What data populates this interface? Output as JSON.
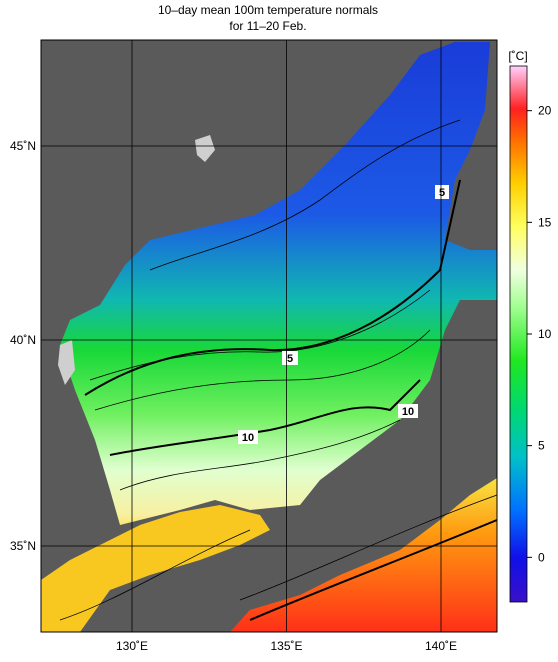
{
  "title": [
    "10–day mean 100m temperature normals",
    "for 11–20 Feb."
  ],
  "map": {
    "lat_ticks": [
      {
        "value": 45,
        "label": "45˚N"
      },
      {
        "value": 40,
        "label": "40˚N"
      },
      {
        "value": 35,
        "label": "35˚N"
      }
    ],
    "lon_ticks": [
      {
        "value": 130,
        "label": "130˚E"
      },
      {
        "value": 135,
        "label": "135˚E"
      },
      {
        "value": 140,
        "label": "140˚E"
      }
    ],
    "contour_labels": [
      "5",
      "5",
      "10",
      "10"
    ]
  },
  "colorbar": {
    "unit": "[˚C]",
    "range": [
      -2,
      22
    ],
    "ticks": [
      0,
      5,
      10,
      15,
      20
    ]
  }
}
